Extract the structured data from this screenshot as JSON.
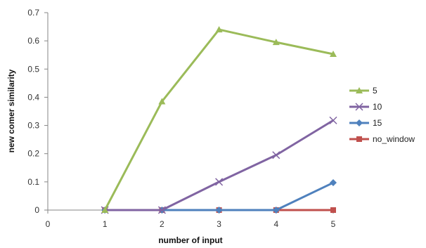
{
  "chart_data": {
    "type": "line",
    "xlabel": "number of input",
    "ylabel": "new comer similarity",
    "x": [
      1,
      2,
      3,
      4,
      5
    ],
    "xlim": [
      0,
      5
    ],
    "ylim": [
      0,
      0.7
    ],
    "x_ticks": [
      "0",
      "1",
      "2",
      "3",
      "4",
      "5"
    ],
    "y_ticks": [
      "0",
      "0.1",
      "0.2",
      "0.3",
      "0.4",
      "0.5",
      "0.6",
      "0.7"
    ],
    "grid": false,
    "legend_position": "right",
    "series": [
      {
        "name": "5",
        "color": "#9bbb59",
        "marker": "triangle",
        "values": [
          0.0,
          0.385,
          0.64,
          0.595,
          0.553
        ]
      },
      {
        "name": "10",
        "color": "#8064a2",
        "marker": "x",
        "values": [
          0.0,
          0.0,
          0.1,
          0.195,
          0.318
        ]
      },
      {
        "name": "15",
        "color": "#4f81bd",
        "marker": "diamond",
        "values": [
          0.0,
          0.0,
          0.0,
          0.0,
          0.097
        ]
      },
      {
        "name": "no_window",
        "color": "#c0504d",
        "marker": "square",
        "values": [
          0.0,
          0.0,
          0.0,
          0.0,
          0.0
        ]
      }
    ]
  }
}
